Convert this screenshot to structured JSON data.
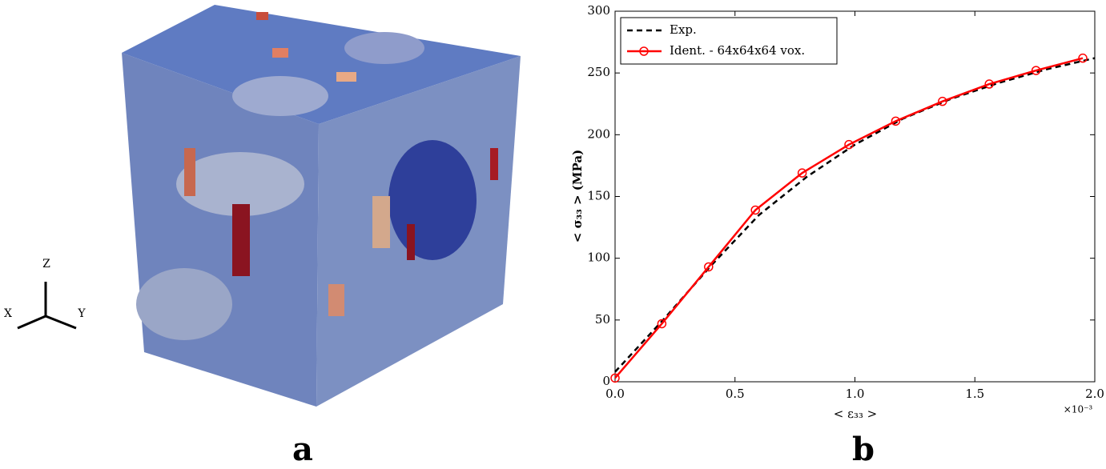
{
  "panel_a": {
    "label": "a",
    "axes": {
      "z": "Z",
      "x": "X",
      "y": "Y"
    }
  },
  "chart_data": {
    "type": "line",
    "panel_label": "b",
    "xlabel": "< ε₃₃ >",
    "ylabel": "< σ₃₃ > (MPa)",
    "x_offset_label": "×10⁻³",
    "xlim": [
      0,
      2.0
    ],
    "ylim": [
      0,
      300
    ],
    "xticks": [
      {
        "value": 0,
        "label": "0.0"
      },
      0.5,
      {
        "value": 1,
        "label": "1.0"
      },
      1.5,
      {
        "value": 2,
        "label": "2.0"
      }
    ],
    "yticks": [
      0,
      50,
      100,
      150,
      200,
      250,
      300
    ],
    "legend": "upper left",
    "series": [
      {
        "name": "Exp.",
        "color": "#000000",
        "style": "dashed",
        "x": [
          0,
          0.2,
          0.4,
          0.6,
          0.8,
          1.0,
          1.2,
          1.4,
          1.6,
          1.8,
          2.0
        ],
        "values": [
          8,
          50,
          94,
          135,
          166,
          192,
          213,
          229,
          242,
          253,
          262
        ]
      },
      {
        "name": "Ident. - 64x64x64 vox.",
        "color": "#ff0000",
        "style": "solid",
        "marker": "circle",
        "x": [
          0,
          0.195,
          0.39,
          0.585,
          0.78,
          0.975,
          1.17,
          1.365,
          1.56,
          1.755,
          1.95
        ],
        "values": [
          3,
          47,
          93,
          139,
          169,
          192,
          211,
          227,
          241,
          252,
          262
        ]
      }
    ]
  }
}
